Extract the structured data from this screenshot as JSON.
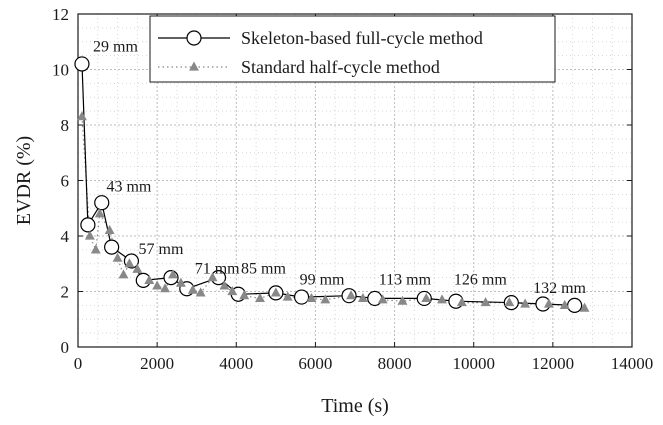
{
  "chart_data": {
    "type": "line",
    "title": "",
    "xlabel": "Time (s)",
    "ylabel": "EVDR (%)",
    "xlim": [
      0,
      14000
    ],
    "ylim": [
      0,
      12
    ],
    "x_ticks": [
      0,
      2000,
      4000,
      6000,
      8000,
      10000,
      12000,
      14000
    ],
    "y_ticks": [
      0,
      2,
      4,
      6,
      8,
      10,
      12
    ],
    "grid": true,
    "legend_position": "top-center",
    "series": [
      {
        "name": "Skeleton-based full-cycle method",
        "color": "#000000",
        "marker": "open-circle",
        "line": "solid",
        "points": [
          [
            100,
            10.2
          ],
          [
            250,
            4.4
          ],
          [
            600,
            5.2
          ],
          [
            850,
            3.6
          ],
          [
            1350,
            3.1
          ],
          [
            1650,
            2.4
          ],
          [
            2350,
            2.5
          ],
          [
            2750,
            2.1
          ],
          [
            3550,
            2.5
          ],
          [
            4050,
            1.9
          ],
          [
            5000,
            1.95
          ],
          [
            5650,
            1.8
          ],
          [
            6850,
            1.85
          ],
          [
            7500,
            1.75
          ],
          [
            8750,
            1.75
          ],
          [
            9550,
            1.65
          ],
          [
            10950,
            1.6
          ],
          [
            11750,
            1.55
          ],
          [
            12550,
            1.5
          ]
        ]
      },
      {
        "name": "Standard half-cycle method",
        "color": "#888888",
        "marker": "triangle",
        "line": "dotted",
        "points": [
          [
            100,
            8.3
          ],
          [
            300,
            4.0
          ],
          [
            450,
            3.5
          ],
          [
            550,
            4.8
          ],
          [
            800,
            4.2
          ],
          [
            1000,
            3.2
          ],
          [
            1150,
            2.6
          ],
          [
            1300,
            3.0
          ],
          [
            1500,
            2.8
          ],
          [
            1800,
            2.4
          ],
          [
            2000,
            2.2
          ],
          [
            2200,
            2.1
          ],
          [
            2400,
            2.6
          ],
          [
            2600,
            2.3
          ],
          [
            2900,
            2.05
          ],
          [
            3100,
            1.95
          ],
          [
            3400,
            2.5
          ],
          [
            3700,
            2.2
          ],
          [
            3900,
            2.0
          ],
          [
            4200,
            1.85
          ],
          [
            4600,
            1.75
          ],
          [
            5000,
            1.95
          ],
          [
            5300,
            1.8
          ],
          [
            5900,
            1.75
          ],
          [
            6250,
            1.7
          ],
          [
            6900,
            1.85
          ],
          [
            7200,
            1.75
          ],
          [
            7700,
            1.7
          ],
          [
            8200,
            1.65
          ],
          [
            8800,
            1.75
          ],
          [
            9200,
            1.7
          ],
          [
            9700,
            1.6
          ],
          [
            10300,
            1.6
          ],
          [
            10900,
            1.6
          ],
          [
            11300,
            1.55
          ],
          [
            11900,
            1.55
          ],
          [
            12300,
            1.5
          ],
          [
            12800,
            1.4
          ]
        ]
      }
    ],
    "annotations": [
      {
        "text": "29 mm",
        "x": 380,
        "y": 10.65
      },
      {
        "text": "43 mm",
        "x": 720,
        "y": 5.6
      },
      {
        "text": "57 mm",
        "x": 1530,
        "y": 3.35
      },
      {
        "text": "71 mm",
        "x": 2950,
        "y": 2.65
      },
      {
        "text": "85 mm",
        "x": 4120,
        "y": 2.65
      },
      {
        "text": "99 mm",
        "x": 5600,
        "y": 2.25
      },
      {
        "text": "113 mm",
        "x": 7600,
        "y": 2.25
      },
      {
        "text": "126 mm",
        "x": 9500,
        "y": 2.25
      },
      {
        "text": "132 mm",
        "x": 11500,
        "y": 1.95
      }
    ]
  }
}
